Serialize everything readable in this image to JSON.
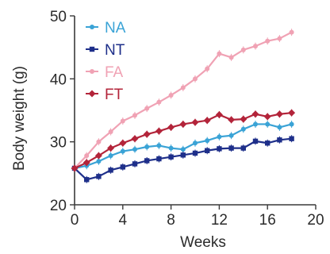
{
  "chart_data": {
    "type": "line",
    "xlabel": "Weeks",
    "ylabel": "Body weight (g)",
    "xlim": [
      0,
      20
    ],
    "ylim": [
      20,
      50
    ],
    "xticks": [
      "0",
      "4",
      "8",
      "12",
      "16",
      "20"
    ],
    "yticks": [
      "20",
      "30",
      "40",
      "50"
    ],
    "grid": false,
    "legend_position": "top-left",
    "x": [
      0,
      1,
      2,
      3,
      4,
      5,
      6,
      7,
      8,
      9,
      10,
      11,
      12,
      13,
      14,
      15,
      16,
      17,
      18
    ],
    "series": [
      {
        "name": "NA",
        "color": "#3aa3d6",
        "marker": "dot",
        "values": [
          25.8,
          26.2,
          26.9,
          27.8,
          28.5,
          28.8,
          29.2,
          29.4,
          29.0,
          28.8,
          29.8,
          30.2,
          30.8,
          31.0,
          32.0,
          32.8,
          32.8,
          32.3,
          32.8
        ]
      },
      {
        "name": "NT",
        "color": "#1e2f8a",
        "marker": "square",
        "values": [
          25.8,
          24.0,
          24.5,
          25.5,
          26.0,
          26.5,
          27.0,
          27.3,
          27.6,
          27.9,
          28.2,
          28.6,
          28.9,
          29.0,
          29.0,
          30.1,
          29.8,
          30.3,
          30.5
        ]
      },
      {
        "name": "FA",
        "color": "#f0a2b4",
        "marker": "dot",
        "values": [
          25.8,
          27.8,
          30.0,
          31.6,
          33.3,
          34.2,
          35.3,
          36.3,
          37.4,
          38.6,
          40.0,
          41.6,
          44.0,
          43.4,
          44.6,
          45.2,
          46.0,
          46.4,
          47.4
        ]
      },
      {
        "name": "FT",
        "color": "#b3243a",
        "marker": "diamond",
        "values": [
          25.8,
          26.7,
          27.8,
          29.0,
          29.8,
          30.5,
          31.2,
          31.7,
          32.3,
          32.8,
          33.1,
          33.4,
          34.3,
          33.5,
          33.6,
          34.4,
          34.0,
          34.4,
          34.6
        ]
      }
    ]
  }
}
